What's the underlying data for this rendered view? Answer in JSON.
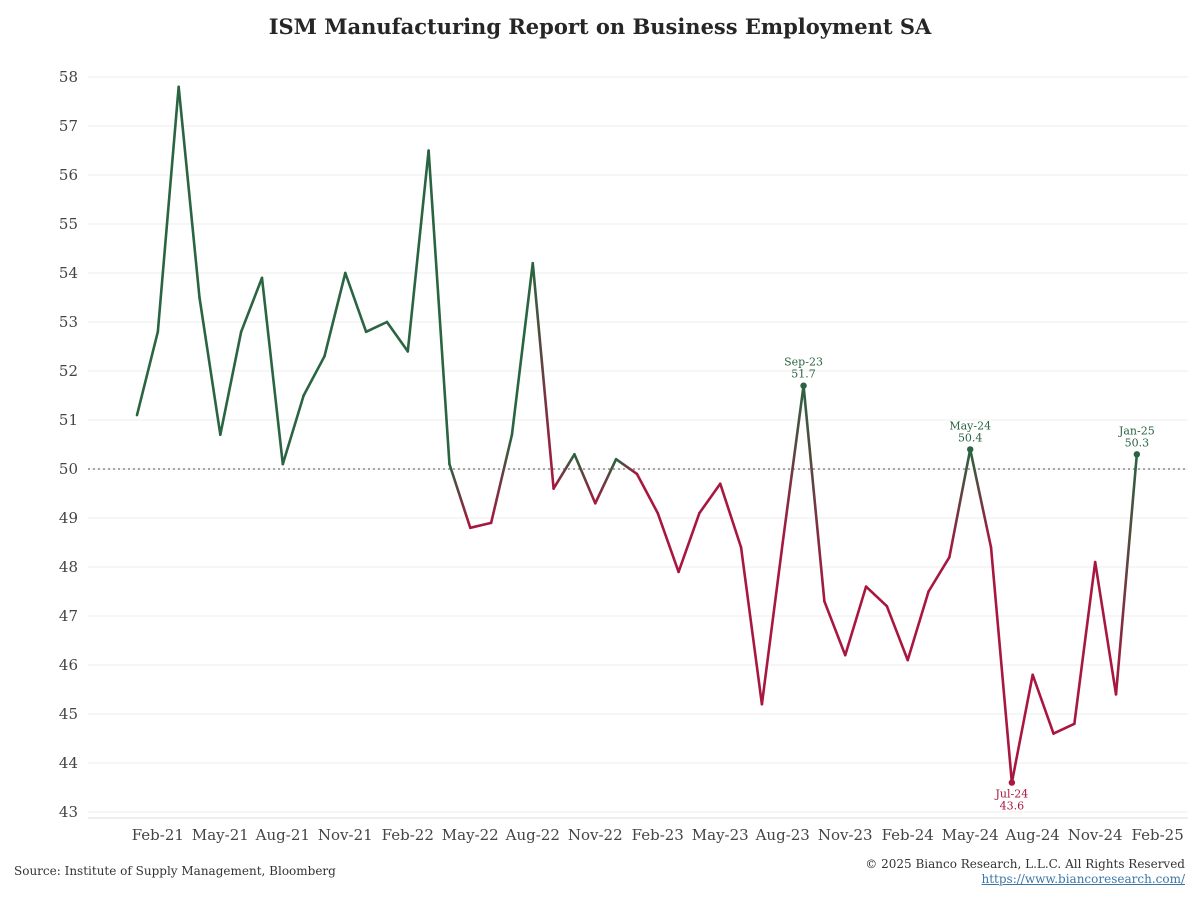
{
  "chart_data": {
    "type": "line",
    "title": "ISM Manufacturing Report on Business Employment SA",
    "xlabel": "",
    "ylabel": "",
    "ylim": [
      43,
      58
    ],
    "yticks": [
      43,
      44,
      45,
      46,
      47,
      48,
      49,
      50,
      51,
      52,
      53,
      54,
      55,
      56,
      57,
      58
    ],
    "xtick_labels": [
      "Feb-21",
      "May-21",
      "Aug-21",
      "Nov-21",
      "Feb-22",
      "May-22",
      "Aug-22",
      "Nov-22",
      "Feb-23",
      "May-23",
      "Aug-23",
      "Nov-23",
      "Feb-24",
      "May-24",
      "Aug-24",
      "Nov-24",
      "Feb-25"
    ],
    "reference_line": 50,
    "x": [
      "Jan-21",
      "Feb-21",
      "Mar-21",
      "Apr-21",
      "May-21",
      "Jun-21",
      "Jul-21",
      "Aug-21",
      "Sep-21",
      "Oct-21",
      "Nov-21",
      "Dec-21",
      "Jan-22",
      "Feb-22",
      "Mar-22",
      "Apr-22",
      "May-22",
      "Jun-22",
      "Jul-22",
      "Aug-22",
      "Sep-22",
      "Oct-22",
      "Nov-22",
      "Dec-22",
      "Jan-23",
      "Feb-23",
      "Mar-23",
      "Apr-23",
      "May-23",
      "Jun-23",
      "Jul-23",
      "Aug-23",
      "Sep-23",
      "Oct-23",
      "Nov-23",
      "Dec-23",
      "Jan-24",
      "Feb-24",
      "Mar-24",
      "Apr-24",
      "May-24",
      "Jun-24",
      "Jul-24",
      "Aug-24",
      "Sep-24",
      "Oct-24",
      "Nov-24",
      "Dec-24",
      "Jan-25"
    ],
    "values": [
      51.1,
      52.8,
      57.8,
      53.5,
      50.7,
      52.8,
      53.9,
      50.1,
      51.5,
      52.3,
      54.0,
      52.8,
      53.0,
      52.4,
      56.5,
      50.1,
      48.8,
      48.9,
      50.7,
      54.2,
      49.6,
      50.3,
      49.3,
      50.2,
      49.9,
      49.1,
      47.9,
      49.1,
      49.7,
      48.4,
      45.2,
      48.5,
      51.7,
      47.3,
      46.2,
      47.6,
      47.2,
      46.1,
      47.5,
      48.2,
      50.4,
      48.4,
      43.6,
      45.8,
      44.6,
      44.8,
      48.1,
      45.4,
      50.3
    ],
    "colors": {
      "above": "#2a6440",
      "below": "#a8173f",
      "reference": "#888888"
    },
    "annotations": [
      {
        "month": "Sep-23",
        "value": "51.7",
        "label": "Sep-23",
        "position": "above",
        "color": "#2a6440"
      },
      {
        "month": "May-24",
        "value": "50.4",
        "label": "May-24",
        "position": "above",
        "color": "#2a6440"
      },
      {
        "month": "Jan-25",
        "value": "50.3",
        "label": "Jan-25",
        "position": "above",
        "color": "#2a6440"
      },
      {
        "month": "Jul-24",
        "value": "43.6",
        "label": "Jul-24",
        "position": "below",
        "color": "#a8173f"
      }
    ]
  },
  "footer": {
    "source": "Source: Institute of Supply Management, Bloomberg",
    "copyright": "© 2025 Bianco Research, L.L.C. All Rights Reserved",
    "url": "https://www.biancoresearch.com/"
  }
}
